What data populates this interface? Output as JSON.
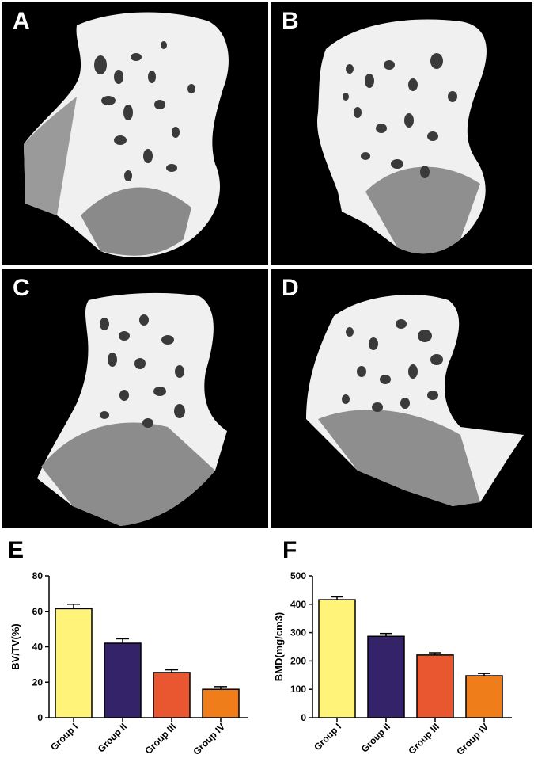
{
  "panels": [
    {
      "letter": "A"
    },
    {
      "letter": "B"
    },
    {
      "letter": "C"
    },
    {
      "letter": "D"
    }
  ],
  "bone_color": "#f2f2f2",
  "pore_color": "#3a3a3a",
  "chart_data": [
    {
      "panel_letter": "E",
      "type": "bar",
      "categories": [
        "Group I",
        "Group II",
        "Group III",
        "Group IV"
      ],
      "values": [
        61.5,
        42,
        25.5,
        16
      ],
      "errors": [
        2.5,
        2.5,
        1.5,
        1.5
      ],
      "colors": [
        "#fff37a",
        "#35236a",
        "#e8572f",
        "#ee7d1a"
      ],
      "ylabel": "BV/TV(%)",
      "ylim": [
        0,
        80
      ],
      "yticks": [
        0,
        20,
        40,
        60,
        80
      ]
    },
    {
      "panel_letter": "F",
      "type": "bar",
      "categories": [
        "Group I",
        "Group II",
        "Group III",
        "Group IV"
      ],
      "values": [
        416,
        287,
        221,
        148
      ],
      "errors": [
        10,
        10,
        8,
        8
      ],
      "colors": [
        "#fff37a",
        "#35236a",
        "#e8572f",
        "#ee7d1a"
      ],
      "ylabel": "BMD(mg/cm3)",
      "ylim": [
        0,
        500
      ],
      "yticks": [
        0,
        100,
        200,
        300,
        400,
        500
      ]
    }
  ]
}
